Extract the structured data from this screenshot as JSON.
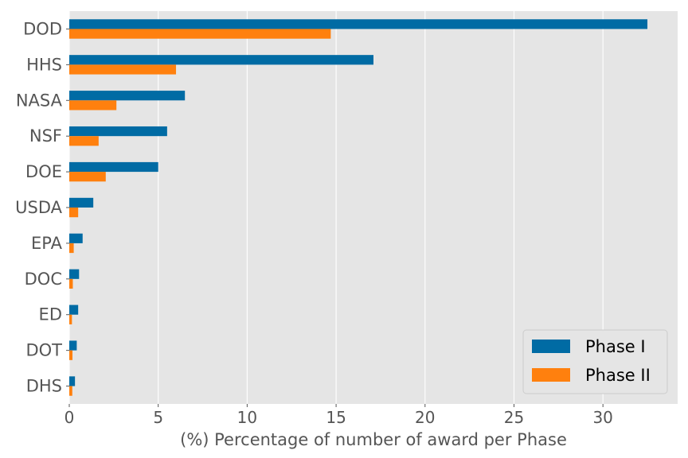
{
  "chart_data": {
    "type": "bar",
    "orientation": "horizontal",
    "categories": [
      "DOD",
      "HHS",
      "NASA",
      "NSF",
      "DOE",
      "USDA",
      "EPA",
      "DOC",
      "ED",
      "DOT",
      "DHS"
    ],
    "series": [
      {
        "name": "Phase I",
        "color": "#006BA4",
        "values": [
          32.5,
          17.1,
          6.5,
          5.5,
          5.0,
          1.35,
          0.75,
          0.55,
          0.5,
          0.42,
          0.32
        ]
      },
      {
        "name": "Phase II",
        "color": "#FF800E",
        "values": [
          14.7,
          6.0,
          2.65,
          1.65,
          2.05,
          0.5,
          0.25,
          0.2,
          0.15,
          0.18,
          0.17
        ]
      }
    ],
    "xlabel": "(%) Percentage of number of award per Phase",
    "ylabel": "",
    "xlim": [
      0,
      34.2
    ],
    "xticks": [
      0,
      5,
      10,
      15,
      20,
      25,
      30
    ],
    "grid": true,
    "legend_position": "lower-right",
    "background_color": "#E5E5E5",
    "grid_color": "#FFFFFF"
  }
}
